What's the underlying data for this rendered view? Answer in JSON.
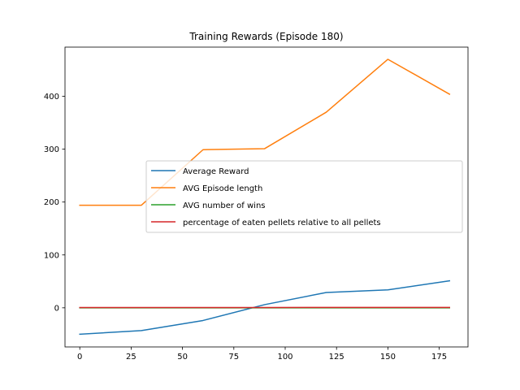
{
  "chart_data": {
    "type": "line",
    "title": "Training Rewards (Episode 180)",
    "xlabel": "",
    "ylabel": "",
    "x": [
      0,
      30,
      60,
      90,
      120,
      150,
      180
    ],
    "xlim": [
      -7.2,
      189
    ],
    "ylim": [
      -74,
      493
    ],
    "xticks": [
      0,
      25,
      50,
      75,
      100,
      125,
      150,
      175
    ],
    "yticks": [
      0,
      100,
      200,
      300,
      400
    ],
    "grid": false,
    "legend_position": "center-right",
    "series": [
      {
        "name": "Average Reward",
        "color": "#1f77b4",
        "values": [
          -50,
          -43,
          -24,
          6,
          29,
          34,
          51
        ]
      },
      {
        "name": "AVG Episode length",
        "color": "#ff7f0e",
        "values": [
          194,
          194,
          299,
          301,
          370,
          470,
          404
        ]
      },
      {
        "name": "AVG number of wins",
        "color": "#2ca02c",
        "values": [
          0,
          0,
          0,
          0,
          0,
          0,
          0
        ]
      },
      {
        "name": "percentage of eaten pellets relative to all pellets",
        "color": "#d62728",
        "values": [
          0.5,
          0.5,
          0.6,
          0.6,
          0.7,
          0.7,
          0.8
        ]
      }
    ]
  }
}
